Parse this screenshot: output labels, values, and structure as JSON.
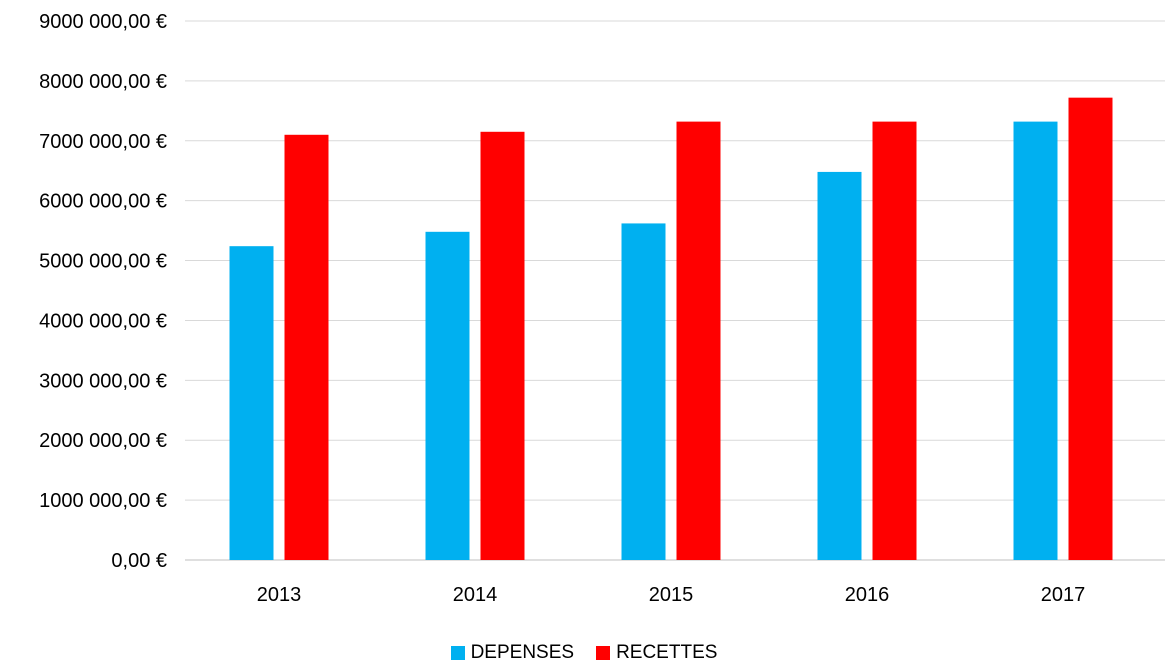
{
  "chart_data": {
    "type": "bar",
    "categories": [
      "2013",
      "2014",
      "2015",
      "2016",
      "2017"
    ],
    "series": [
      {
        "name": "DEPENSES",
        "color": "#00b0f0",
        "values": [
          5240000,
          5480000,
          5620000,
          6480000,
          7320000
        ]
      },
      {
        "name": "RECETTES",
        "color": "#ff0000",
        "values": [
          7100000,
          7150000,
          7320000,
          7320000,
          7720000
        ]
      }
    ],
    "ylim": [
      0,
      9000000
    ],
    "yticks": [
      0,
      1000000,
      2000000,
      3000000,
      4000000,
      5000000,
      6000000,
      7000000,
      8000000,
      9000000
    ],
    "ytick_labels": [
      "0,00 €",
      "1000 000,00 €",
      "2000 000,00 €",
      "3000 000,00 €",
      "4000 000,00 €",
      "5000 000,00 €",
      "6000 000,00 €",
      "7000 000,00 €",
      "8000 000,00 €",
      "9000 000,00 €"
    ],
    "grid": true,
    "legend_position": "bottom",
    "title": "",
    "xlabel": "",
    "ylabel": ""
  }
}
